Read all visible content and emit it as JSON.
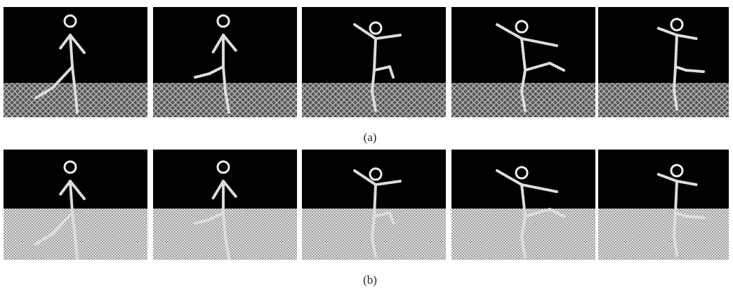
{
  "figure": {
    "rows": [
      {
        "caption": "(a)"
      },
      {
        "caption": "(b)"
      }
    ]
  }
}
